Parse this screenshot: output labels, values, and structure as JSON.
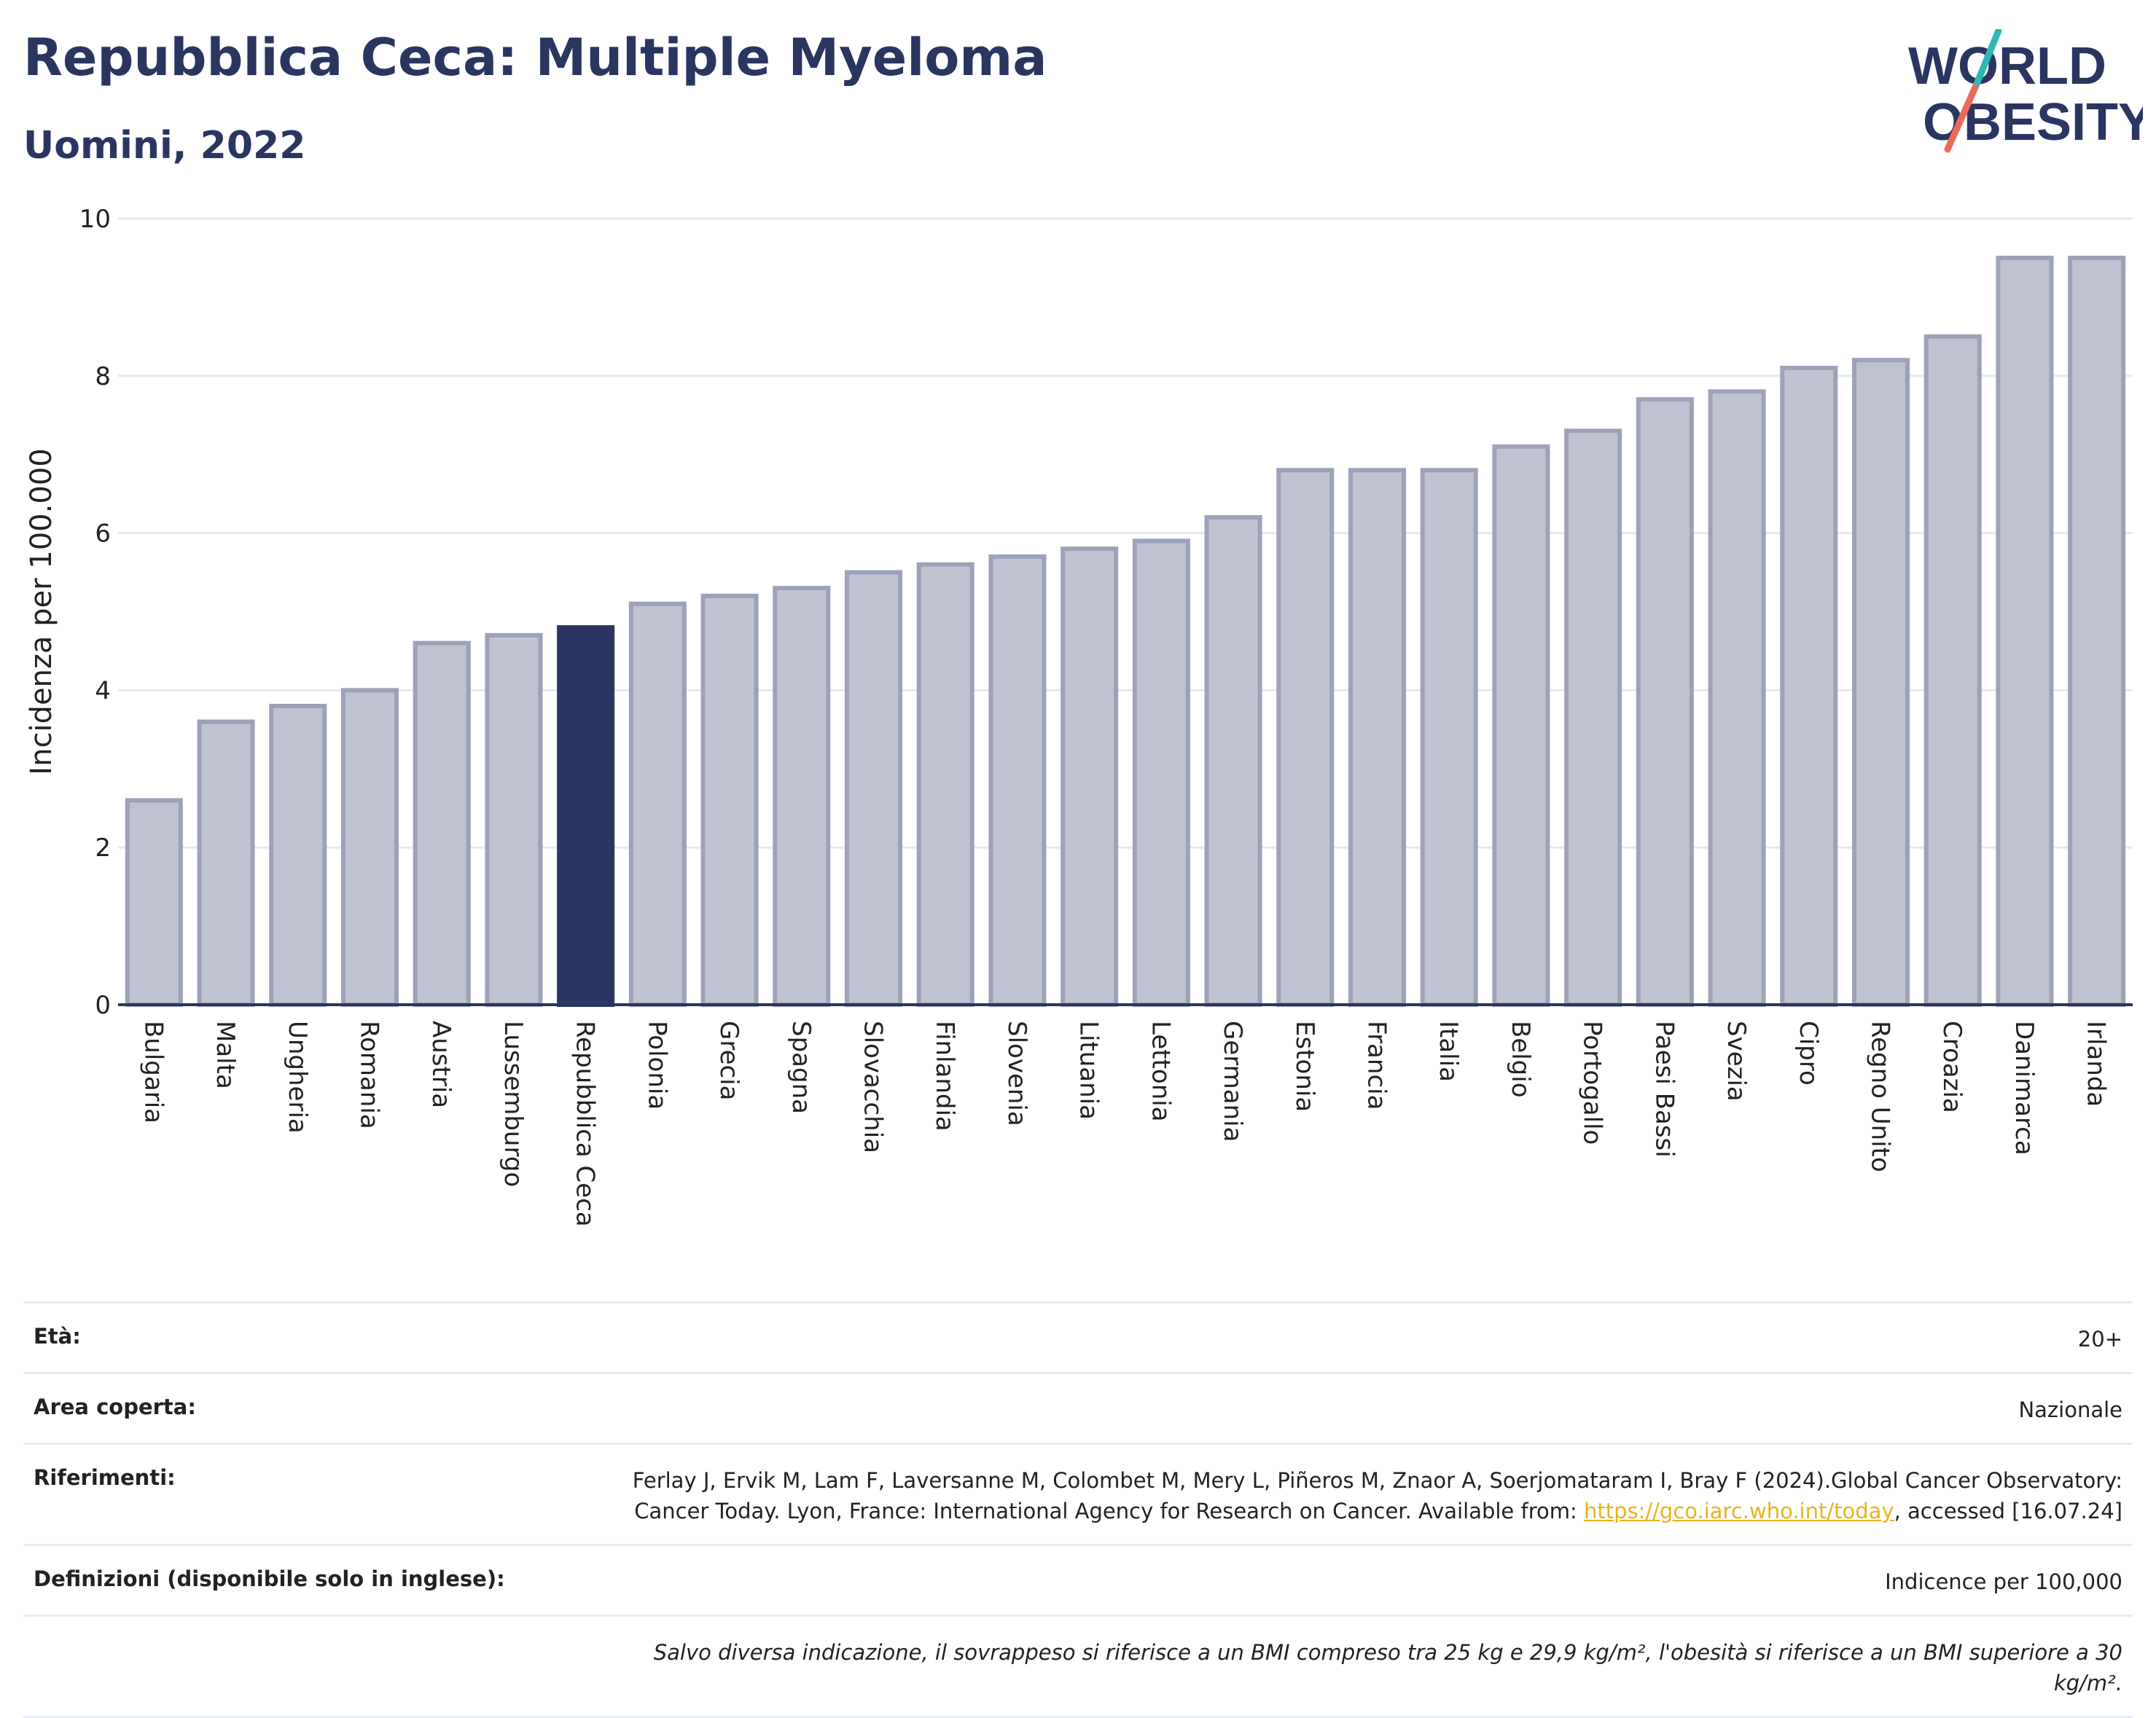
{
  "header": {
    "title": "Repubblica Ceca: Multiple Myeloma",
    "subtitle": "Uomini, 2022",
    "logo_line1": "WORLD",
    "logo_line2": "OBESITY"
  },
  "colors": {
    "bar": "#bfc2d0",
    "bar_stroke": "#9da2b8",
    "highlight": "#2b3561",
    "axis": "#2b3561",
    "grid": "#e6e8ee",
    "logo_text": "#2b3561",
    "logo_slash_top": "#2fb7b5",
    "logo_slash_bottom": "#ea6b5c",
    "link": "#e9b31b"
  },
  "chart_data": {
    "type": "bar",
    "title": "Repubblica Ceca: Multiple Myeloma",
    "subtitle": "Uomini, 2022",
    "ylabel": "Incidenza per 100.000",
    "ylim": [
      0,
      10
    ],
    "yticks": [
      0,
      2,
      4,
      6,
      8,
      10
    ],
    "grid": true,
    "highlight": "Repubblica Ceca",
    "categories": [
      "Bulgaria",
      "Malta",
      "Ungheria",
      "Romania",
      "Austria",
      "Lussemburgo",
      "Repubblica Ceca",
      "Polonia",
      "Grecia",
      "Spagna",
      "Slovacchia",
      "Finlandia",
      "Slovenia",
      "Lituania",
      "Lettonia",
      "Germania",
      "Estonia",
      "Francia",
      "Italia",
      "Belgio",
      "Portogallo",
      "Paesi Bassi",
      "Svezia",
      "Cipro",
      "Regno Unito",
      "Croazia",
      "Danimarca",
      "Irlanda"
    ],
    "values": [
      2.6,
      3.6,
      3.8,
      4.0,
      4.6,
      4.7,
      4.8,
      5.1,
      5.2,
      5.3,
      5.5,
      5.6,
      5.7,
      5.8,
      5.9,
      6.2,
      6.8,
      6.8,
      6.8,
      7.1,
      7.3,
      7.7,
      7.8,
      8.1,
      8.2,
      8.5,
      9.5,
      9.5
    ]
  },
  "info": {
    "eta_label": "Età:",
    "eta_value": "20+",
    "area_label": "Area coperta:",
    "area_value": "Nazionale",
    "rif_label": "Riferimenti:",
    "rif_text1": "Ferlay J, Ervik M, Lam F, Laversanne M, Colombet M, Mery L, Piñeros M, Znaor A, Soerjomataram I, Bray F (2024).Global Cancer Observatory: Cancer Today. Lyon, France: International Agency for Research on Cancer. Available from: ",
    "rif_link": "https://gco.iarc.who.int/today",
    "rif_text2": ", accessed [16.07.24]",
    "def_label": "Definizioni (disponibile solo in inglese):",
    "def_value": "Indicence per 100,000",
    "note": "Salvo diversa indicazione, il sovrappeso si riferisce a un BMI compreso tra 25 kg e 29,9 kg/m², l'obesità si riferisce a un BMI superiore a 30 kg/m²."
  }
}
